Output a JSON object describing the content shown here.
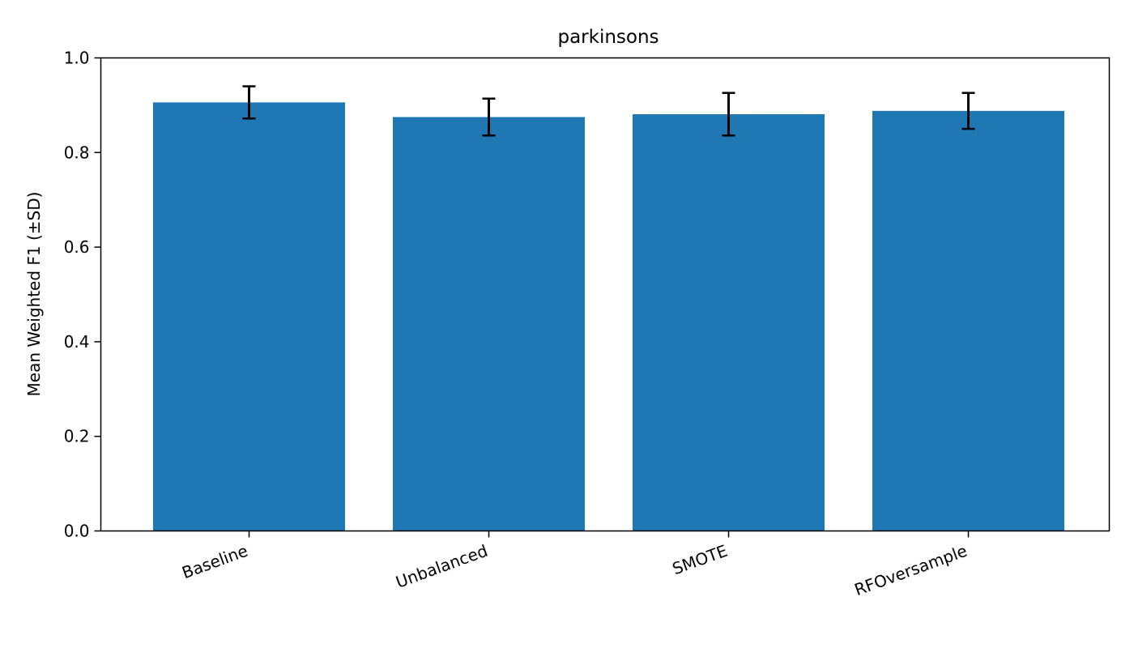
{
  "chart_data": {
    "type": "bar",
    "title": "parkinsons",
    "xlabel": "",
    "ylabel": "Mean Weighted F1 (±SD)",
    "categories": [
      "Baseline",
      "Unbalanced",
      "SMOTE",
      "RFOversample"
    ],
    "values": [
      0.906,
      0.875,
      0.881,
      0.888
    ],
    "errors": [
      0.034,
      0.039,
      0.045,
      0.038
    ],
    "ylim": [
      0.0,
      1.0
    ],
    "yticks": [
      "0.0",
      "0.2",
      "0.4",
      "0.6",
      "0.8",
      "1.0"
    ],
    "grid": false,
    "legend": "none",
    "bar_color": "#1f77b4",
    "error_color": "#000000"
  }
}
